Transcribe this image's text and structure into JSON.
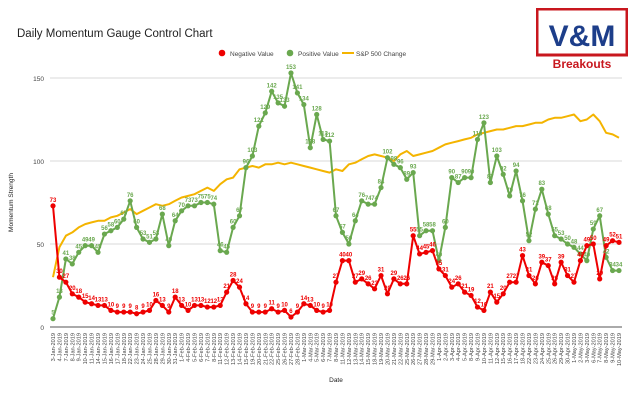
{
  "chart_data": {
    "type": "line",
    "title": "Daily Momentum Gauge Control Chart",
    "xlabel": "Date",
    "ylabel": "Momentum Strength",
    "ylim": [
      0,
      150
    ],
    "yticks": [
      0,
      50,
      100,
      150
    ],
    "grid": true,
    "legend_position": "top",
    "x": [
      "3-Jan-2019",
      "4-Jan-2019",
      "7-Jan-2019",
      "8-Jan-2019",
      "9-Jan-2019",
      "10-Jan-2019",
      "11-Jan-2019",
      "14-Jan-2019",
      "15-Jan-2019",
      "16-Jan-2019",
      "17-Jan-2019",
      "18-Jan-2019",
      "22-Jan-2019",
      "23-Jan-2019",
      "24-Jan-2019",
      "25-Jan-2019",
      "28-Jan-2019",
      "29-Jan-2019",
      "30-Jan-2019",
      "31-Jan-2019",
      "1-Feb-2019",
      "4-Feb-2019",
      "5-Feb-2019",
      "6-Feb-2019",
      "7-Feb-2019",
      "8-Feb-2019",
      "11-Feb-2019",
      "12-Feb-2019",
      "13-Feb-2019",
      "14-Feb-2019",
      "15-Feb-2019",
      "19-Feb-2019",
      "20-Feb-2019",
      "21-Feb-2019",
      "22-Feb-2019",
      "25-Feb-2019",
      "26-Feb-2019",
      "27-Feb-2019",
      "28-Feb-2019",
      "1-Mar-2019",
      "4-Mar-2019",
      "5-Mar-2019",
      "6-Mar-2019",
      "7-Mar-2019",
      "8-Mar-2019",
      "11-Mar-2019",
      "12-Mar-2019",
      "13-Mar-2019",
      "14-Mar-2019",
      "15-Mar-2019",
      "18-Mar-2019",
      "19-Mar-2019",
      "20-Mar-2019",
      "21-Mar-2019",
      "22-Mar-2019",
      "25-Mar-2019",
      "26-Mar-2019",
      "27-Mar-2019",
      "28-Mar-2019",
      "29-Mar-2019",
      "1-Apr-2019",
      "2-Apr-2019",
      "3-Apr-2019",
      "4-Apr-2019",
      "5-Apr-2019",
      "8-Apr-2019",
      "9-Apr-2019",
      "10-Apr-2019",
      "11-Apr-2019",
      "12-Apr-2019",
      "15-Apr-2019",
      "16-Apr-2019",
      "17-Apr-2019",
      "18-Apr-2019",
      "22-Apr-2019",
      "23-Apr-2019",
      "24-Apr-2019",
      "25-Apr-2019",
      "26-Apr-2019",
      "29-Apr-2019",
      "30-Apr-2019",
      "1-May-2019",
      "2-May-2019",
      "3-May-2019",
      "6-May-2019",
      "7-May-2019",
      "8-May-2019",
      "9-May-2019",
      "10-May-2019"
    ],
    "series": [
      {
        "name": "Negative Value",
        "color": "#ee0000",
        "marker": true,
        "values": [
          73,
          30,
          27,
          20,
          18,
          15,
          14,
          13,
          13,
          10,
          9,
          9,
          9,
          8,
          9,
          10,
          16,
          13,
          9,
          18,
          13,
          10,
          13,
          13,
          12,
          12,
          13,
          21,
          28,
          24,
          14,
          9,
          9,
          9,
          11,
          9,
          10,
          6,
          9,
          14,
          13,
          10,
          9,
          10,
          27,
          40,
          40,
          27,
          29,
          26,
          23,
          31,
          20,
          29,
          26,
          26,
          55,
          44,
          45,
          46,
          35,
          31,
          24,
          26,
          21,
          19,
          12,
          10,
          21,
          15,
          20,
          27,
          27,
          43,
          31,
          26,
          39,
          37,
          26,
          39,
          31,
          27,
          40,
          49,
          50,
          29,
          49,
          52,
          51
        ],
        "labels": [
          "73",
          "30",
          "27",
          "20",
          "18",
          "15",
          "14",
          "13",
          "13",
          "10",
          "9",
          "9",
          "9",
          "8",
          "9",
          "10",
          "16",
          "13",
          "9",
          "18",
          "13",
          "10",
          "13",
          "13",
          "12",
          "12",
          "13",
          "21",
          "28",
          "24",
          "14",
          "9",
          "9",
          "9",
          "11",
          "9",
          "10",
          "6",
          "9",
          "14",
          "13",
          "10",
          "9",
          "10",
          "27",
          "40",
          "40",
          "27",
          "29",
          "26",
          "23",
          "31",
          "20",
          "29",
          "26",
          "26",
          "55",
          "44",
          "45",
          "46",
          "35",
          "31",
          "24",
          "26",
          "21",
          "19",
          "12",
          "10",
          "21",
          "15",
          "20",
          "27",
          "27",
          "43",
          "31",
          "26",
          "39",
          "37",
          "26",
          "39",
          "31",
          "27",
          "40",
          "49",
          "50",
          "29",
          "49",
          "52",
          "51"
        ]
      },
      {
        "name": "Positive Value",
        "color": "#6aa84f",
        "marker": true,
        "values": [
          5,
          18,
          41,
          38,
          45,
          49,
          49,
          45,
          56,
          58,
          60,
          65,
          76,
          60,
          53,
          51,
          53,
          68,
          49,
          64,
          70,
          73,
          73,
          75,
          75,
          74,
          46,
          45,
          60,
          67,
          96,
          103,
          121,
          129,
          142,
          135,
          133,
          153,
          141,
          134,
          108,
          128,
          113,
          112,
          67,
          57,
          50,
          64,
          76,
          74,
          74,
          84,
          102,
          98,
          96,
          89,
          93,
          55,
          58,
          58,
          40,
          60,
          90,
          87,
          90,
          90,
          113,
          123,
          87,
          103,
          92,
          79,
          94,
          76,
          52,
          71,
          83,
          68,
          55,
          53,
          50,
          48,
          44,
          40,
          59,
          67,
          42,
          34,
          34
        ],
        "labels": [
          "5",
          "18",
          "41",
          "38",
          "45",
          "49",
          "49",
          "45",
          "56",
          "58",
          "60",
          "65",
          "76",
          "60",
          "53",
          "51",
          "53",
          "68",
          "49",
          "64",
          "70",
          "73",
          "73",
          "75",
          "75",
          "74",
          "46",
          "45",
          "60",
          "67",
          "96",
          "103",
          "121",
          "129",
          "142",
          "135",
          "133",
          "153",
          "141",
          "134",
          "108",
          "128",
          "113",
          "112",
          "67",
          "57",
          "50",
          "64",
          "76",
          "74",
          "74",
          "84",
          "102",
          "98",
          "96",
          "89",
          "93",
          "55",
          "58",
          "58",
          "40",
          "60",
          "90",
          "87",
          "90",
          "90",
          "113",
          "123",
          "87",
          "103",
          "92",
          "79",
          "94",
          "76",
          "52",
          "71",
          "83",
          "68",
          "55",
          "53",
          "50",
          "48",
          "44",
          "40",
          "59",
          "67",
          "42",
          "34",
          "34"
        ]
      },
      {
        "name": "S&P 500 Change",
        "color": "#f4b400",
        "marker": false,
        "values": [
          30,
          48,
          55,
          57,
          60,
          62,
          63,
          64,
          64,
          66,
          67,
          69,
          71,
          68,
          70,
          72,
          74,
          73,
          74,
          76,
          78,
          79,
          80,
          82,
          84,
          82,
          86,
          89,
          90,
          95,
          96,
          97,
          96,
          98,
          98,
          99,
          98,
          99,
          98,
          97,
          96,
          95,
          94,
          93,
          95,
          94,
          98,
          99,
          101,
          103,
          104,
          103,
          102,
          100,
          104,
          106,
          103,
          104,
          105,
          106,
          108,
          110,
          111,
          112,
          113,
          114,
          116,
          117,
          118,
          119,
          119,
          120,
          121,
          121,
          122,
          123,
          123,
          125,
          126,
          126,
          127,
          128,
          124,
          125,
          128,
          124,
          117,
          116,
          114
        ]
      }
    ]
  },
  "logo": {
    "main_text": "V&M",
    "sub_text": "Breakouts",
    "colors": {
      "red": "#c8171e",
      "blue": "#1d3e8a"
    }
  }
}
